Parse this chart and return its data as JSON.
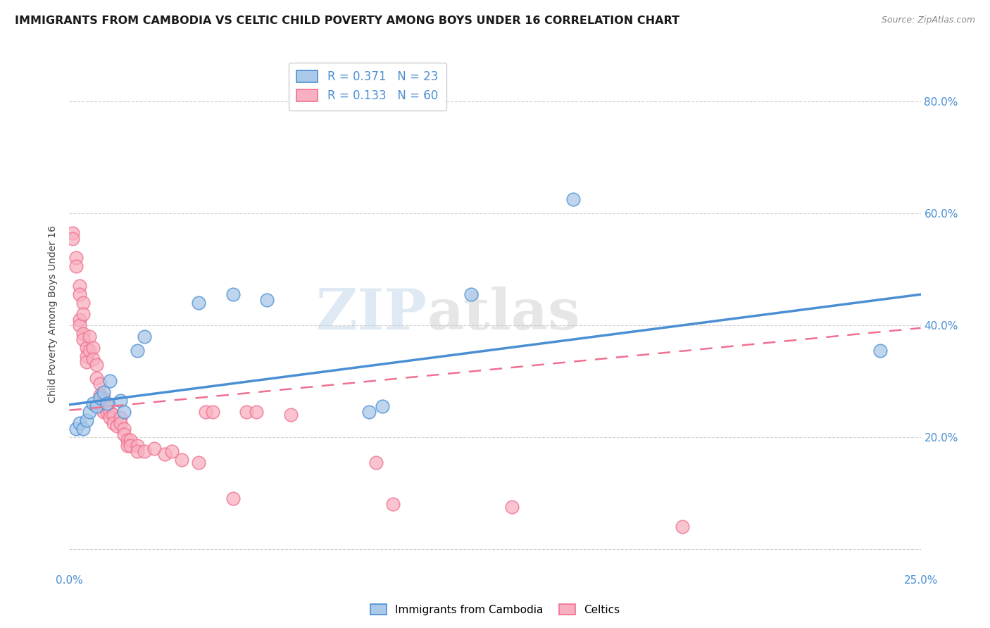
{
  "title": "IMMIGRANTS FROM CAMBODIA VS CELTIC CHILD POVERTY AMONG BOYS UNDER 16 CORRELATION CHART",
  "source": "Source: ZipAtlas.com",
  "ylabel": "Child Poverty Among Boys Under 16",
  "xlim": [
    0.0,
    0.25
  ],
  "ylim": [
    -0.04,
    0.88
  ],
  "xticks": [
    0.0,
    0.05,
    0.1,
    0.15,
    0.2,
    0.25
  ],
  "xtick_labels": [
    "0.0%",
    "",
    "",
    "",
    "",
    "25.0%"
  ],
  "yticks": [
    0.0,
    0.2,
    0.4,
    0.6,
    0.8
  ],
  "ytick_labels": [
    "",
    "20.0%",
    "40.0%",
    "60.0%",
    "80.0%"
  ],
  "blue_scatter": [
    [
      0.002,
      0.215
    ],
    [
      0.003,
      0.225
    ],
    [
      0.004,
      0.215
    ],
    [
      0.005,
      0.23
    ],
    [
      0.006,
      0.245
    ],
    [
      0.007,
      0.26
    ],
    [
      0.008,
      0.255
    ],
    [
      0.009,
      0.27
    ],
    [
      0.01,
      0.28
    ],
    [
      0.011,
      0.26
    ],
    [
      0.012,
      0.3
    ],
    [
      0.015,
      0.265
    ],
    [
      0.016,
      0.245
    ],
    [
      0.02,
      0.355
    ],
    [
      0.022,
      0.38
    ],
    [
      0.038,
      0.44
    ],
    [
      0.048,
      0.455
    ],
    [
      0.058,
      0.445
    ],
    [
      0.088,
      0.245
    ],
    [
      0.092,
      0.255
    ],
    [
      0.118,
      0.455
    ],
    [
      0.148,
      0.625
    ],
    [
      0.238,
      0.355
    ]
  ],
  "pink_scatter": [
    [
      0.001,
      0.565
    ],
    [
      0.001,
      0.555
    ],
    [
      0.002,
      0.52
    ],
    [
      0.002,
      0.505
    ],
    [
      0.003,
      0.47
    ],
    [
      0.003,
      0.455
    ],
    [
      0.003,
      0.41
    ],
    [
      0.003,
      0.4
    ],
    [
      0.004,
      0.44
    ],
    [
      0.004,
      0.42
    ],
    [
      0.004,
      0.385
    ],
    [
      0.004,
      0.375
    ],
    [
      0.005,
      0.36
    ],
    [
      0.005,
      0.345
    ],
    [
      0.005,
      0.335
    ],
    [
      0.006,
      0.38
    ],
    [
      0.006,
      0.355
    ],
    [
      0.007,
      0.36
    ],
    [
      0.007,
      0.34
    ],
    [
      0.008,
      0.33
    ],
    [
      0.008,
      0.305
    ],
    [
      0.009,
      0.295
    ],
    [
      0.009,
      0.275
    ],
    [
      0.01,
      0.27
    ],
    [
      0.01,
      0.255
    ],
    [
      0.01,
      0.245
    ],
    [
      0.011,
      0.255
    ],
    [
      0.011,
      0.245
    ],
    [
      0.012,
      0.245
    ],
    [
      0.012,
      0.235
    ],
    [
      0.013,
      0.24
    ],
    [
      0.013,
      0.225
    ],
    [
      0.014,
      0.22
    ],
    [
      0.015,
      0.235
    ],
    [
      0.015,
      0.225
    ],
    [
      0.016,
      0.215
    ],
    [
      0.016,
      0.205
    ],
    [
      0.017,
      0.195
    ],
    [
      0.017,
      0.185
    ],
    [
      0.018,
      0.195
    ],
    [
      0.018,
      0.185
    ],
    [
      0.02,
      0.185
    ],
    [
      0.02,
      0.175
    ],
    [
      0.022,
      0.175
    ],
    [
      0.025,
      0.18
    ],
    [
      0.028,
      0.17
    ],
    [
      0.03,
      0.175
    ],
    [
      0.033,
      0.16
    ],
    [
      0.038,
      0.155
    ],
    [
      0.04,
      0.245
    ],
    [
      0.042,
      0.245
    ],
    [
      0.048,
      0.09
    ],
    [
      0.052,
      0.245
    ],
    [
      0.055,
      0.245
    ],
    [
      0.065,
      0.24
    ],
    [
      0.09,
      0.155
    ],
    [
      0.095,
      0.08
    ],
    [
      0.13,
      0.075
    ],
    [
      0.18,
      0.04
    ]
  ],
  "blue_line_x": [
    0.0,
    0.25
  ],
  "blue_line_y": [
    0.258,
    0.455
  ],
  "pink_line_x": [
    0.0,
    0.25
  ],
  "pink_line_y": [
    0.248,
    0.395
  ],
  "blue_color": "#4a8fd4",
  "pink_color": "#f07090",
  "blue_fill": "#aac8e8",
  "pink_fill": "#f8b0c0",
  "watermark_text": "ZIP",
  "watermark_text2": "atlas",
  "title_fontsize": 11.5,
  "label_fontsize": 10
}
